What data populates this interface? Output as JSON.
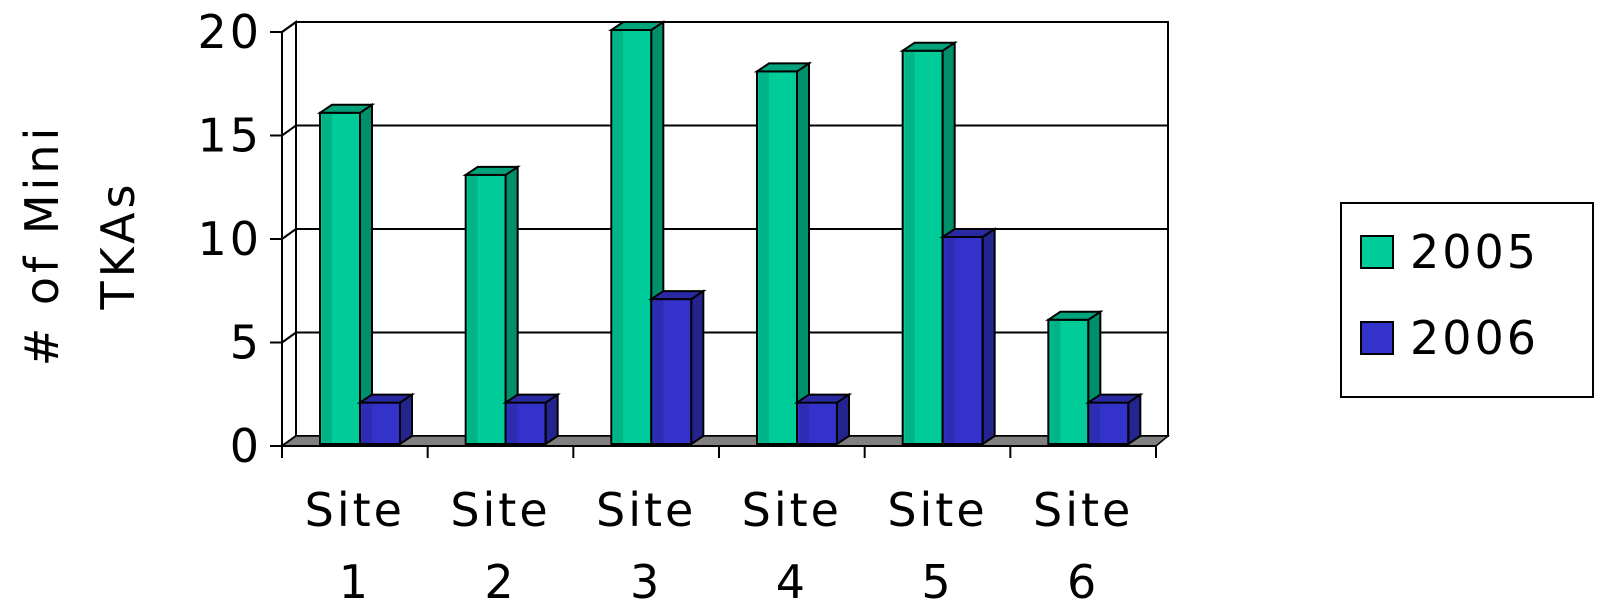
{
  "chart_data": {
    "type": "bar",
    "categories": [
      [
        "Site",
        "1"
      ],
      [
        "Site",
        "2"
      ],
      [
        "Site",
        "3"
      ],
      [
        "Site",
        "4"
      ],
      [
        "Site",
        "5"
      ],
      [
        "Site",
        "6"
      ]
    ],
    "series": [
      {
        "name": "2005",
        "values": [
          16,
          13,
          20,
          18,
          19,
          6
        ],
        "color": "#00cc99"
      },
      {
        "name": "2006",
        "values": [
          2,
          2,
          7,
          2,
          10,
          2
        ],
        "color": "#3333cc"
      }
    ],
    "title": "",
    "xlabel": "",
    "ylabel": [
      "# of Mini",
      "TKAs"
    ],
    "ylim": [
      0,
      20
    ],
    "yticks": [
      "0",
      "5",
      "10",
      "15",
      "20"
    ],
    "grid": true,
    "legend_position": "right",
    "style": "3d-clustered-column",
    "floor_color": "#808080"
  }
}
